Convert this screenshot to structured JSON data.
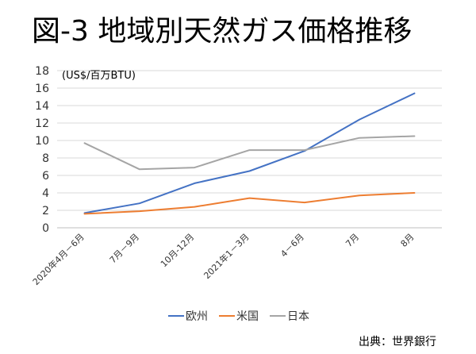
{
  "title": "図-3 地域別天然ガス価格推移",
  "source": "出典：世界銀行",
  "chart_data": {
    "type": "line",
    "unit_label": "(US$/百万BTU)",
    "categories": [
      "2020年4月－6月",
      "7月－9月",
      "10月-12月",
      "2021年1－3月",
      "4－6月",
      "7月",
      "8月"
    ],
    "series": [
      {
        "name": "欧州",
        "color": "#4472c4",
        "values": [
          1.7,
          2.8,
          5.1,
          6.5,
          8.8,
          12.4,
          15.4
        ]
      },
      {
        "name": "米国",
        "color": "#ed7d31",
        "values": [
          1.6,
          1.9,
          2.4,
          3.4,
          2.9,
          3.7,
          4.0
        ]
      },
      {
        "name": "日本",
        "color": "#a5a5a5",
        "values": [
          9.7,
          6.7,
          6.9,
          8.9,
          8.9,
          10.3,
          10.5
        ]
      }
    ],
    "ylim": [
      0,
      18
    ],
    "yticks": [
      0,
      2,
      4,
      6,
      8,
      10,
      12,
      14,
      16,
      18
    ],
    "grid": true,
    "legend": "bottom"
  }
}
